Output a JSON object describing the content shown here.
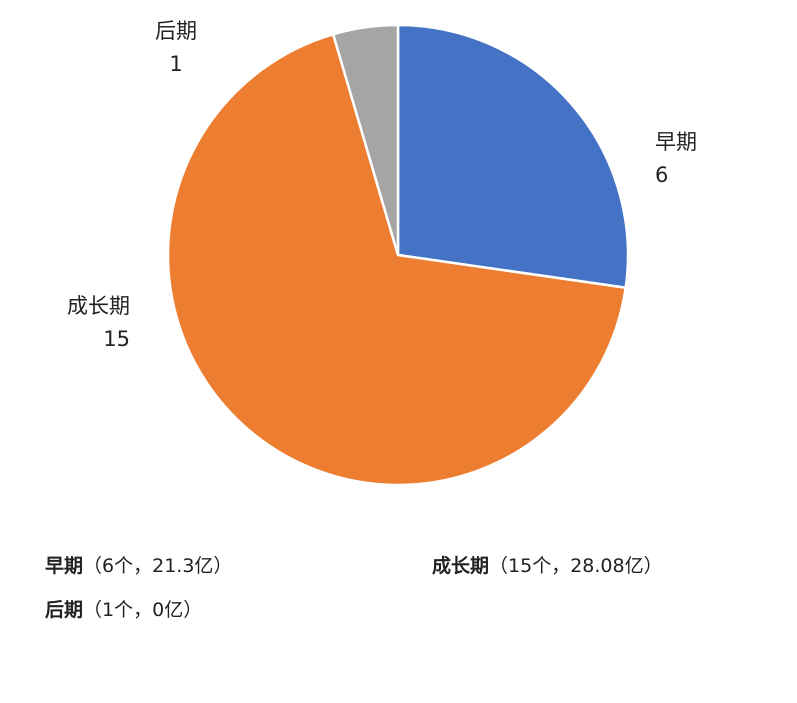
{
  "chart_data": {
    "type": "pie",
    "categories": [
      "早期",
      "成长期",
      "后期"
    ],
    "values": [
      6,
      15,
      1
    ],
    "colors": [
      "#4472c4",
      "#ed7d31",
      "#a5a5a5"
    ],
    "start_angle": 0,
    "direction": "clockwise"
  },
  "legend": [
    {
      "name": "早期",
      "detail": "（6个，21.3亿）"
    },
    {
      "name": "成长期",
      "detail": "（15个，28.08亿）"
    },
    {
      "name": "后期",
      "detail": "（1个，0亿）"
    }
  ]
}
